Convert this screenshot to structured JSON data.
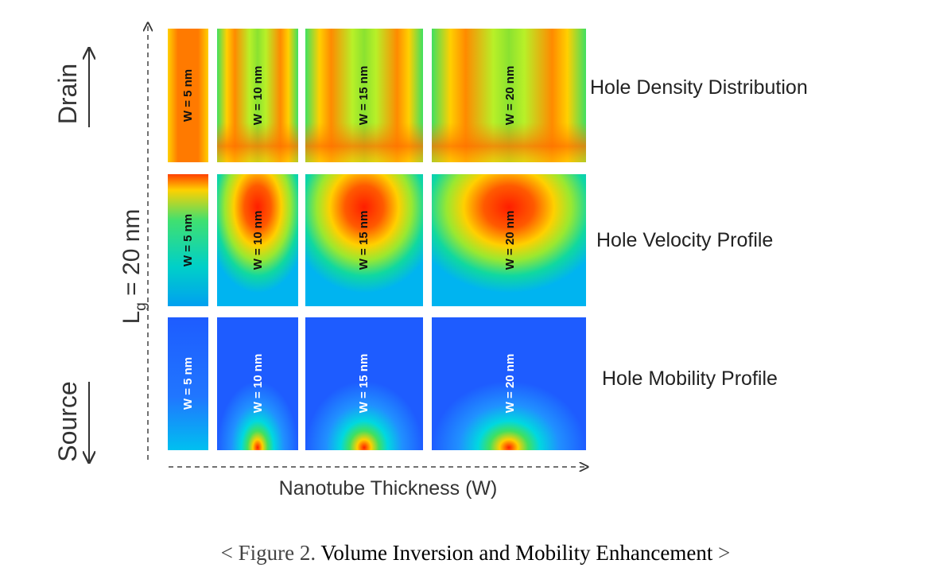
{
  "figure": {
    "y_axis_label_main": "L",
    "y_axis_label_sub": "g",
    "y_axis_label_rest": " = 20 nm",
    "drain_label": "Drain",
    "source_label": "Source",
    "x_axis_label": "Nanotube Thickness (W)",
    "rows": [
      {
        "label": "Hole Density Distribution",
        "kind": "density"
      },
      {
        "label": "Hole Velocity Profile",
        "kind": "velocity"
      },
      {
        "label": "Hole Mobility Profile",
        "kind": "mobility"
      }
    ],
    "columns": [
      {
        "label": "W = 5 nm"
      },
      {
        "label": "W = 10 nm"
      },
      {
        "label": "W = 15 nm"
      },
      {
        "label": "W = 20 nm"
      }
    ]
  },
  "caption": {
    "prefix": "< Figure 2.",
    "title": " Volume Inversion and Mobility Enhancement ",
    "suffix": ">"
  },
  "colors": {
    "density_outer": "#ff6a00",
    "density_inner": "#7ee02a",
    "velocity_core": "#ff2a00",
    "velocity_outer": "#00c8e0",
    "mobility_base": "#1e5cff",
    "mobility_hot": "#ff2200"
  }
}
